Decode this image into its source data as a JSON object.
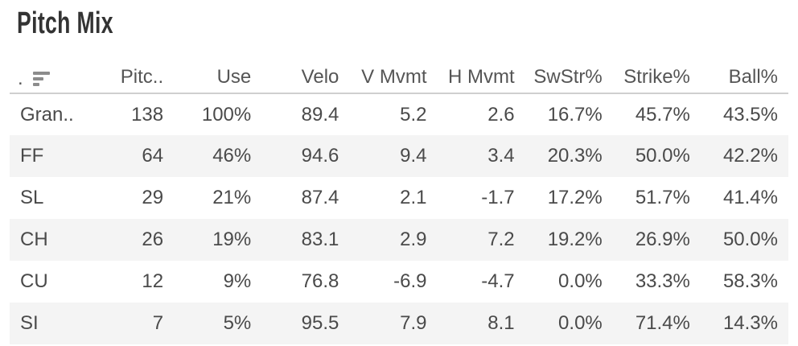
{
  "title": "Pitch Mix",
  "colors": {
    "text": "#4a4a4a",
    "header_text": "#555555",
    "stripe": "#f4f4f4",
    "header_underline": "#cfcfcf",
    "sort_icon": "#8c8c8c",
    "title": "#333333"
  },
  "table": {
    "row_header_label": ".",
    "sort_icon": "sort-descending-icon",
    "columns": [
      "Pitc..",
      "Use",
      "Velo",
      "V Mvmt",
      "H Mvmt",
      "SwStr%",
      "Strike%",
      "Ball%"
    ],
    "rows": [
      {
        "pitch": "Gran..",
        "values": [
          "138",
          "100%",
          "89.4",
          "5.2",
          "2.6",
          "16.7%",
          "45.7%",
          "43.5%"
        ]
      },
      {
        "pitch": "FF",
        "values": [
          "64",
          "46%",
          "94.6",
          "9.4",
          "3.4",
          "20.3%",
          "50.0%",
          "42.2%"
        ]
      },
      {
        "pitch": "SL",
        "values": [
          "29",
          "21%",
          "87.4",
          "2.1",
          "-1.7",
          "17.2%",
          "51.7%",
          "41.4%"
        ]
      },
      {
        "pitch": "CH",
        "values": [
          "26",
          "19%",
          "83.1",
          "2.9",
          "7.2",
          "19.2%",
          "26.9%",
          "50.0%"
        ]
      },
      {
        "pitch": "CU",
        "values": [
          "12",
          "9%",
          "76.8",
          "-6.9",
          "-4.7",
          "0.0%",
          "33.3%",
          "58.3%"
        ]
      },
      {
        "pitch": "SI",
        "values": [
          "7",
          "5%",
          "95.5",
          "7.9",
          "8.1",
          "0.0%",
          "71.4%",
          "14.3%"
        ]
      }
    ]
  }
}
